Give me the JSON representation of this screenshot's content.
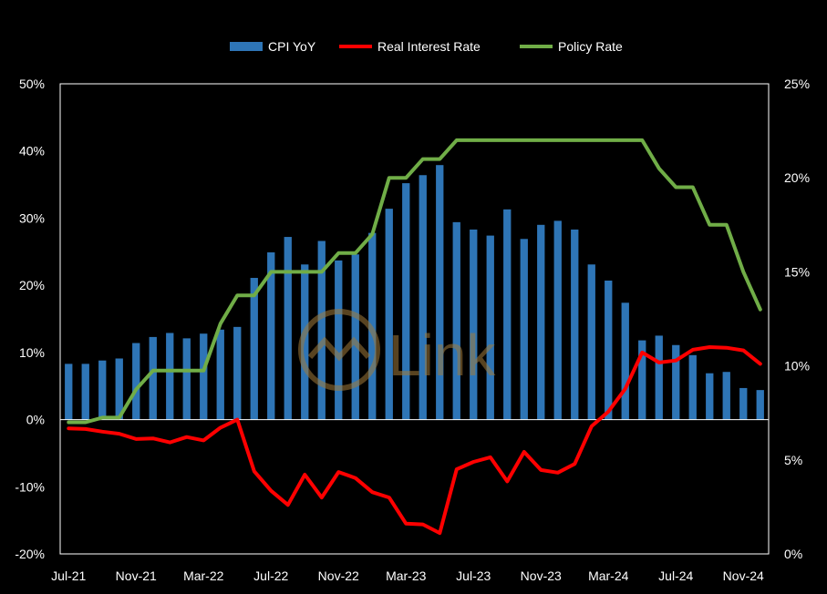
{
  "chart_data": {
    "type": "bar+line",
    "categories": [
      "Jul-21",
      "Aug-21",
      "Sep-21",
      "Oct-21",
      "Nov-21",
      "Dec-21",
      "Jan-22",
      "Feb-22",
      "Mar-22",
      "Apr-22",
      "May-22",
      "Jun-22",
      "Jul-22",
      "Aug-22",
      "Sep-22",
      "Oct-22",
      "Nov-22",
      "Dec-22",
      "Jan-23",
      "Feb-23",
      "Mar-23",
      "Apr-23",
      "May-23",
      "Jun-23",
      "Jul-23",
      "Aug-23",
      "Sep-23",
      "Oct-23",
      "Nov-23",
      "Dec-23",
      "Jan-24",
      "Feb-24",
      "Mar-24",
      "Apr-24",
      "May-24",
      "Jun-24",
      "Jul-24",
      "Aug-24",
      "Sep-24",
      "Oct-24",
      "Nov-24",
      "Dec-24"
    ],
    "x_tick_labels": [
      "Jul-21",
      "Nov-21",
      "Mar-22",
      "Jul-22",
      "Nov-22",
      "Mar-23",
      "Jul-23",
      "Nov-23",
      "Mar-24",
      "Jul-24",
      "Nov-24"
    ],
    "left_axis": {
      "ylim": [
        -20,
        50
      ],
      "ticks": [
        "-20%",
        "-10%",
        "0%",
        "10%",
        "20%",
        "30%",
        "40%",
        "50%"
      ],
      "tick_values": [
        -20,
        -10,
        0,
        10,
        20,
        30,
        40,
        50
      ]
    },
    "right_axis": {
      "ylim": [
        0,
        25
      ],
      "ticks": [
        "0%",
        "5%",
        "10%",
        "15%",
        "20%",
        "25%"
      ],
      "tick_values": [
        0,
        5,
        10,
        15,
        20,
        25
      ]
    },
    "series": [
      {
        "name": "CPI YoY",
        "type": "bar",
        "axis": "left",
        "color": "#2e75b6",
        "values": [
          8.3,
          8.3,
          8.8,
          9.1,
          11.4,
          12.3,
          12.9,
          12.1,
          12.8,
          13.4,
          13.8,
          21.1,
          24.9,
          27.2,
          23.1,
          26.6,
          23.7,
          24.6,
          27.8,
          31.4,
          35.2,
          36.4,
          37.9,
          29.4,
          28.3,
          27.4,
          31.3,
          26.9,
          29.0,
          29.6,
          28.3,
          23.1,
          20.7,
          17.4,
          11.8,
          12.5,
          11.1,
          9.6,
          6.9,
          7.1,
          4.7,
          4.4
        ]
      },
      {
        "name": "Real Interest Rate",
        "type": "line",
        "axis": "left",
        "color": "#ff0000",
        "values": [
          -1.3,
          -1.4,
          -1.8,
          -2.1,
          -2.9,
          -2.8,
          -3.4,
          -2.6,
          -3.1,
          -1.2,
          0.0,
          -7.7,
          -10.6,
          -12.7,
          -8.2,
          -11.6,
          -7.8,
          -8.7,
          -10.8,
          -11.6,
          -15.5,
          -15.6,
          -16.9,
          -7.4,
          -6.3,
          -5.6,
          -9.2,
          -4.8,
          -7.5,
          -7.9,
          -6.6,
          -1.0,
          1.2,
          4.6,
          10.0,
          8.5,
          8.8,
          10.4,
          10.8,
          10.7,
          10.3,
          8.3
        ]
      },
      {
        "name": "Policy Rate",
        "type": "line",
        "axis": "right",
        "color": "#70ad47",
        "values": [
          7.0,
          7.0,
          7.25,
          7.25,
          8.75,
          9.75,
          9.75,
          9.75,
          9.75,
          12.25,
          13.75,
          13.75,
          15.0,
          15.0,
          15.0,
          15.0,
          16.0,
          16.0,
          17.0,
          20.0,
          20.0,
          21.0,
          21.0,
          22.0,
          22.0,
          22.0,
          22.0,
          22.0,
          22.0,
          22.0,
          22.0,
          22.0,
          22.0,
          22.0,
          22.0,
          20.5,
          19.5,
          19.5,
          17.5,
          17.5,
          15.0,
          13.0
        ]
      }
    ],
    "legend_position": "top-center",
    "grid": false,
    "watermark": "Link"
  }
}
